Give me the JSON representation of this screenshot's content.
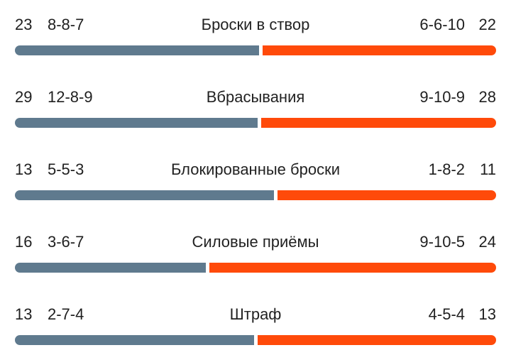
{
  "stats": [
    {
      "label": "Броски в створ",
      "home_total": "23",
      "home_periods": "8-8-7",
      "away_periods": "6-6-10",
      "away_total": "22",
      "home_value": 23,
      "away_value": 22
    },
    {
      "label": "Вбрасывания",
      "home_total": "29",
      "home_periods": "12-8-9",
      "away_periods": "9-10-9",
      "away_total": "28",
      "home_value": 29,
      "away_value": 28
    },
    {
      "label": "Блокированные броски",
      "home_total": "13",
      "home_periods": "5-5-3",
      "away_periods": "1-8-2",
      "away_total": "11",
      "home_value": 13,
      "away_value": 11
    },
    {
      "label": "Силовые приёмы",
      "home_total": "16",
      "home_periods": "3-6-7",
      "away_periods": "9-10-5",
      "away_total": "24",
      "home_value": 16,
      "away_value": 24
    },
    {
      "label": "Штраф",
      "home_total": "13",
      "home_periods": "2-7-4",
      "away_periods": "4-5-4",
      "away_total": "13",
      "home_value": 13,
      "away_value": 13
    }
  ],
  "colors": {
    "home": "#5f7a8e",
    "away": "#ff4a0a"
  }
}
